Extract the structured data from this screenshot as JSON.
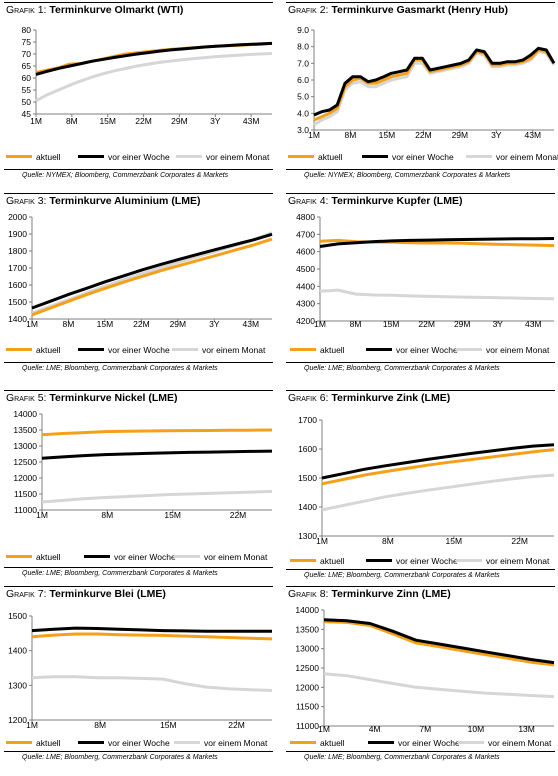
{
  "colors": {
    "aktuell": "#f5a01a",
    "woche": "#000000",
    "monat": "#d6d6d6",
    "axis": "#7f7f7f"
  },
  "panels": [
    {
      "title_prefix": "Grafik 1: ",
      "title_main": "Terminkurve Olmarkt (WTI)",
      "legend": [
        "aktuell",
        "vor einer Woche",
        "vor einem Monat"
      ],
      "source": "Quelle: NYMEX; Bloomberg, Commerzbank Corporates & Markets",
      "chart_data": {
        "type": "line",
        "x_labels": [
          "1M",
          "8M",
          "15M",
          "22M",
          "29M",
          "3Y",
          "43M"
        ],
        "yticks": [
          45,
          50,
          55,
          60,
          65,
          70,
          75,
          80
        ],
        "ylim": [
          45,
          80
        ],
        "series": [
          {
            "name": "aktuell",
            "values": [
              62.3,
              63.3,
              64.2,
              65.8,
              66.0,
              67.0,
              68.0,
              69.0,
              70.0,
              70.5,
              71.0,
              71.5,
              71.9,
              72.3,
              72.6,
              72.9,
              73.2,
              73.4,
              73.6,
              73.9,
              74.1,
              74.4
            ]
          },
          {
            "name": "vor einer Woche",
            "values": [
              61.5,
              62.8,
              64.0,
              65.0,
              66.0,
              67.0,
              67.8,
              68.6,
              69.3,
              70.0,
              70.6,
              71.2,
              71.7,
              72.1,
              72.5,
              72.9,
              73.2,
              73.5,
              73.8,
              74.0,
              74.2,
              74.4
            ]
          },
          {
            "name": "vor einem Monat",
            "values": [
              50.5,
              53.0,
              55.0,
              57.0,
              58.8,
              60.4,
              61.8,
              63.0,
              64.0,
              65.0,
              65.8,
              66.5,
              67.1,
              67.6,
              68.1,
              68.5,
              68.9,
              69.2,
              69.5,
              69.8,
              70.0,
              70.2
            ]
          }
        ]
      }
    },
    {
      "title_prefix": "Grafik 2: ",
      "title_main": "Terminkurve Gasmarkt (Henry Hub)",
      "legend": [
        "aktuell",
        "vor einer Woche",
        "vor einem Monat"
      ],
      "source": "Quelle: NYMEX; Bloomberg, Commerzbank Corporates & Markets",
      "chart_data": {
        "type": "line",
        "x_labels": [
          "1M",
          "8M",
          "15M",
          "22M",
          "29M",
          "3Y",
          "43M"
        ],
        "yticks": [
          3.0,
          4.0,
          5.0,
          6.0,
          7.0,
          8.0,
          9.0
        ],
        "ylim": [
          3.0,
          9.0
        ],
        "ytick_format": 1,
        "series": [
          {
            "name": "aktuell",
            "values": [
              3.6,
              3.8,
              4.0,
              4.3,
              5.6,
              6.0,
              6.1,
              5.8,
              5.8,
              6.0,
              6.2,
              6.3,
              6.4,
              7.2,
              7.2,
              6.5,
              6.6,
              6.7,
              6.8,
              6.9,
              7.1,
              7.7,
              7.6,
              6.9,
              6.9,
              7.0,
              7.0,
              7.1,
              7.3,
              7.8,
              7.7,
              7.0
            ]
          },
          {
            "name": "vor einer Woche",
            "values": [
              3.9,
              4.1,
              4.2,
              4.5,
              5.8,
              6.2,
              6.2,
              5.9,
              6.0,
              6.2,
              6.4,
              6.5,
              6.6,
              7.3,
              7.3,
              6.6,
              6.7,
              6.8,
              6.9,
              7.0,
              7.2,
              7.8,
              7.7,
              7.0,
              7.0,
              7.1,
              7.1,
              7.2,
              7.5,
              7.9,
              7.8,
              7.0
            ]
          },
          {
            "name": "vor einem Monat",
            "values": [
              3.3,
              3.6,
              3.8,
              4.1,
              5.4,
              5.8,
              5.9,
              5.6,
              5.6,
              5.8,
              6.0,
              6.1,
              6.2,
              7.0,
              7.0,
              6.4,
              6.5,
              6.6,
              6.7,
              6.8,
              7.0,
              7.6,
              7.5,
              6.8,
              6.8,
              6.9,
              6.9,
              7.0,
              7.2,
              7.7,
              7.6,
              6.9
            ]
          }
        ]
      }
    },
    {
      "title_prefix": "Grafik 3: ",
      "title_main": "Terminkurve Aluminium (LME)",
      "legend": [
        "aktuell",
        "vor einer Woche",
        "vor einem Monat"
      ],
      "source": "Quelle: LME; Bloomberg, Commerzbank Corporates & Markets",
      "chart_data": {
        "type": "line",
        "x_labels": [
          "1M",
          "8M",
          "15M",
          "22M",
          "29M",
          "3Y",
          "43M"
        ],
        "yticks": [
          1400,
          1500,
          1600,
          1700,
          1800,
          1900,
          2000
        ],
        "ylim": [
          1400,
          2000
        ],
        "series": [
          {
            "name": "aktuell",
            "values": [
              1425,
              1465,
              1505,
              1545,
              1582,
              1618,
              1652,
              1685,
              1715,
              1745,
              1775,
              1805,
              1835,
              1870
            ]
          },
          {
            "name": "vor einer Woche",
            "values": [
              1465,
              1505,
              1545,
              1582,
              1620,
              1655,
              1690,
              1722,
              1752,
              1781,
              1810,
              1838,
              1866,
              1898
            ]
          },
          {
            "name": "vor einem Monat",
            "values": [
              1435,
              1475,
              1515,
              1555,
              1595,
              1632,
              1668,
              1702,
              1735,
              1768,
              1800,
              1832,
              1864,
              1908
            ]
          }
        ]
      }
    },
    {
      "title_prefix": "Grafik 4: ",
      "title_main": "Terminkurve Kupfer (LME)",
      "legend": [
        "aktuell",
        "vor einer Woche",
        "vor einem Monat"
      ],
      "source": "Quelle: LME; Bloomberg, Commerzbank Corporates & Markets",
      "chart_data": {
        "type": "line",
        "x_labels": [
          "1M",
          "8M",
          "15M",
          "22M",
          "29M",
          "3Y",
          "43M"
        ],
        "yticks": [
          4200,
          4300,
          4400,
          4500,
          4600,
          4700,
          4800
        ],
        "ylim": [
          4200,
          4800
        ],
        "series": [
          {
            "name": "aktuell",
            "values": [
              4660,
              4665,
              4658,
              4655,
              4655,
              4652,
              4650,
              4650,
              4648,
              4645,
              4642,
              4640,
              4638,
              4635
            ]
          },
          {
            "name": "vor einer Woche",
            "values": [
              4630,
              4645,
              4652,
              4658,
              4662,
              4665,
              4667,
              4669,
              4670,
              4672,
              4673,
              4674,
              4675,
              4676
            ]
          },
          {
            "name": "vor einem Monat",
            "values": [
              4372,
              4378,
              4355,
              4350,
              4348,
              4345,
              4342,
              4340,
              4338,
              4336,
              4334,
              4332,
              4330,
              4328
            ]
          }
        ]
      }
    },
    {
      "title_prefix": "Grafik 5: ",
      "title_main": " Terminkurve Nickel (LME)",
      "legend": [
        "aktuell",
        "vor einer Woche",
        "vor einem Monat"
      ],
      "source": "Quelle: LME; Bloomberg, Commerzbank Corporates & Markets",
      "chart_data": {
        "type": "line",
        "x_labels": [
          "1M",
          "8M",
          "15M",
          "22M"
        ],
        "yticks": [
          11000,
          11500,
          12000,
          12500,
          13000,
          13500,
          14000
        ],
        "ylim": [
          11000,
          14000
        ],
        "series": [
          {
            "name": "aktuell",
            "values": [
              13350,
              13390,
              13420,
              13450,
              13460,
              13470,
              13475,
              13480,
              13485,
              13490,
              13495,
              13500
            ]
          },
          {
            "name": "vor einer Woche",
            "values": [
              12620,
              12660,
              12700,
              12730,
              12750,
              12770,
              12785,
              12800,
              12810,
              12820,
              12830,
              12840
            ]
          },
          {
            "name": "vor einem Monat",
            "values": [
              11250,
              11300,
              11350,
              11390,
              11420,
              11450,
              11480,
              11500,
              11520,
              11540,
              11560,
              11580
            ]
          }
        ]
      }
    },
    {
      "title_prefix": "Grafik 6: ",
      "title_main": "Terminkurve Zink (LME)",
      "legend": [
        "aktuell",
        "vor einer Woche",
        "vor einem Monat"
      ],
      "source": "Quelle: LME; Bloomberg, Commerzbank Corporates & Markets",
      "chart_data": {
        "type": "line",
        "x_labels": [
          "1M",
          "8M",
          "15M",
          "22M"
        ],
        "yticks": [
          1300,
          1400,
          1500,
          1600,
          1700
        ],
        "ylim": [
          1300,
          1700
        ],
        "series": [
          {
            "name": "aktuell",
            "values": [
              1480,
              1495,
              1510,
              1522,
              1533,
              1544,
              1554,
              1563,
              1572,
              1581,
              1590,
              1598
            ]
          },
          {
            "name": "vor einer Woche",
            "values": [
              1500,
              1515,
              1530,
              1542,
              1553,
              1564,
              1574,
              1584,
              1593,
              1602,
              1610,
              1615
            ]
          },
          {
            "name": "vor einem Monat",
            "values": [
              1390,
              1405,
              1420,
              1435,
              1447,
              1458,
              1468,
              1478,
              1488,
              1497,
              1505,
              1510
            ]
          }
        ]
      }
    },
    {
      "title_prefix": "Grafik 7: ",
      "title_main": "Terminkurve Blei (LME)",
      "legend": [
        "aktuell",
        "vor einer Woche",
        "vor einem Monat"
      ],
      "source": "Quelle: LME; Bloomberg, Commerzbank Corporates & Markets",
      "chart_data": {
        "type": "line",
        "x_labels": [
          "1M",
          "8M",
          "15M",
          "22M"
        ],
        "yticks": [
          1200,
          1300,
          1400,
          1500
        ],
        "ylim": [
          1200,
          1500
        ],
        "series": [
          {
            "name": "aktuell",
            "values": [
              1440,
              1445,
              1448,
              1448,
              1446,
              1445,
              1444,
              1442,
              1440,
              1438,
              1436,
              1434
            ]
          },
          {
            "name": "vor einer Woche",
            "values": [
              1458,
              1462,
              1465,
              1464,
              1462,
              1460,
              1458,
              1457,
              1456,
              1456,
              1456,
              1456
            ]
          },
          {
            "name": "vor einem Monat",
            "values": [
              1322,
              1325,
              1325,
              1322,
              1322,
              1320,
              1318,
              1305,
              1295,
              1290,
              1287,
              1285
            ]
          }
        ]
      }
    },
    {
      "title_prefix": "Grafik 8: ",
      "title_main": "Terminkurve Zinn (LME)",
      "legend": [
        "aktuell",
        "vor einer Woche",
        "vor einem Monat"
      ],
      "source": "Quelle: LME; Bloomberg, Commerzbank Corporates & Markets",
      "chart_data": {
        "type": "line",
        "x_labels": [
          "1M",
          "4M",
          "7M",
          "10M",
          "13M"
        ],
        "yticks": [
          11000,
          11500,
          12000,
          12500,
          13000,
          13500,
          14000
        ],
        "ylim": [
          11000,
          14000
        ],
        "series": [
          {
            "name": "aktuell",
            "values": [
              13700,
              13680,
              13600,
              13380,
              13150,
              13050,
              12950,
              12850,
              12750,
              12650,
              12580
            ]
          },
          {
            "name": "vor einer Woche",
            "values": [
              13750,
              13720,
              13650,
              13450,
              13220,
              13120,
              13020,
              12920,
              12820,
              12720,
              12640
            ]
          },
          {
            "name": "vor einem Monat",
            "values": [
              12350,
              12300,
              12200,
              12100,
              12000,
              11950,
              11900,
              11850,
              11820,
              11790,
              11760
            ]
          }
        ]
      }
    }
  ]
}
